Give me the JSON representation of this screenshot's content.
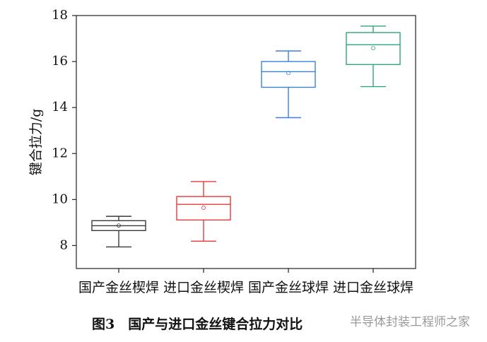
{
  "chart_data": {
    "type": "box",
    "y_label": "键合拉力/g",
    "categories": [
      "国产金丝楔焊",
      "进口金丝楔焊",
      "国产金丝球焊",
      "进口金丝球焊"
    ],
    "boxes": [
      {
        "min": 7.94,
        "q1": 8.65,
        "median": 8.86,
        "q3": 9.08,
        "max": 9.27,
        "mean": 8.87,
        "color": "#3a3a3a"
      },
      {
        "min": 8.19,
        "q1": 9.11,
        "median": 9.79,
        "q3": 10.13,
        "max": 10.78,
        "mean": 9.64,
        "color": "#e8393a"
      },
      {
        "min": 13.56,
        "q1": 14.88,
        "median": 15.56,
        "q3": 16.0,
        "max": 16.46,
        "mean": 15.5,
        "color": "#3b7fe0"
      },
      {
        "min": 14.91,
        "q1": 15.87,
        "median": 16.73,
        "q3": 17.26,
        "max": 17.54,
        "mean": 16.58,
        "color": "#2ea876"
      }
    ],
    "ylim": [
      7,
      18
    ],
    "yticks": [
      8,
      10,
      12,
      14,
      16,
      18
    ]
  },
  "caption": "图3　国产与进口金丝键合拉力对比",
  "watermark": "半导体封装工程师之家"
}
